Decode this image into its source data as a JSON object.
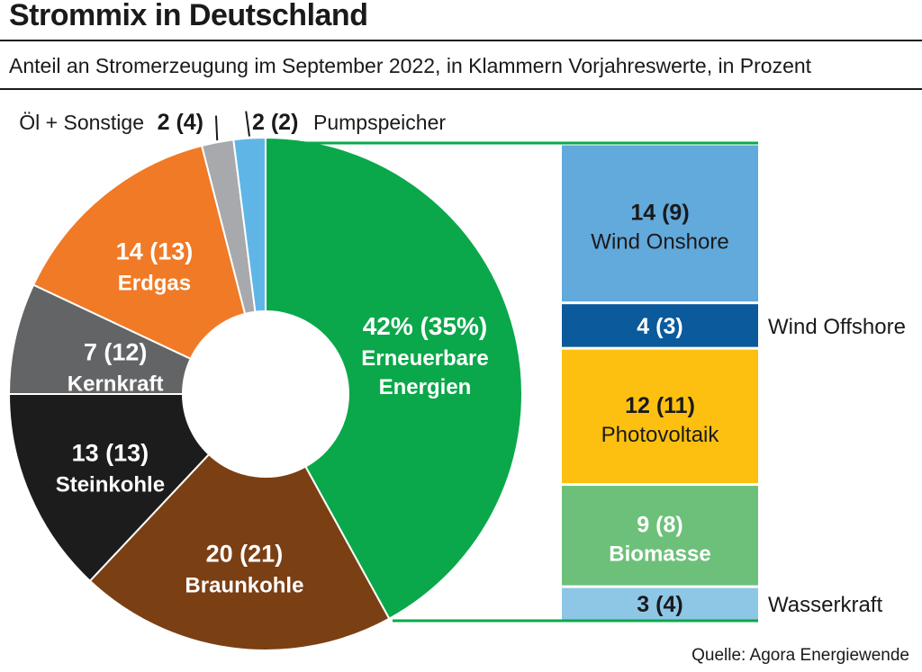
{
  "header": {
    "title": "Strommix in Deutschland",
    "subtitle": "Anteil an Stromerzeugung im September 2022, in Klammern Vorjahreswerte, in Prozent",
    "source": "Quelle: Agora Energiewende"
  },
  "chart_data": {
    "type": "pie",
    "title": "Strommix in Deutschland",
    "subtitle": "Anteil an Stromerzeugung im September 2022, in Klammern Vorjahreswerte, in Prozent",
    "slices": [
      {
        "name": "Erneuerbare Energien",
        "value": 42,
        "prev": 35,
        "value_label": "42% (35%)",
        "label_lines": [
          "Erneuerbare",
          "Energien"
        ],
        "color": "#0aa84a"
      },
      {
        "name": "Braunkohle",
        "value": 20,
        "prev": 21,
        "value_label": "20 (21)",
        "label_lines": [
          "Braunkohle"
        ],
        "color": "#7b3f14"
      },
      {
        "name": "Steinkohle",
        "value": 13,
        "prev": 13,
        "value_label": "13 (13)",
        "label_lines": [
          "Steinkohle"
        ],
        "color": "#1c1c1c"
      },
      {
        "name": "Kernkraft",
        "value": 7,
        "prev": 12,
        "value_label": "7 (12)",
        "label_lines": [
          "Kernkraft"
        ],
        "color": "#636466"
      },
      {
        "name": "Erdgas",
        "value": 14,
        "prev": 13,
        "value_label": "14 (13)",
        "label_lines": [
          "Erdgas"
        ],
        "color": "#f07a26"
      },
      {
        "name": "Öl + Sonstige",
        "value": 2,
        "prev": 4,
        "value_label": "2 (4)",
        "label_lines": [
          "Öl + Sonstige"
        ],
        "color": "#a7a9ac"
      },
      {
        "name": "Pumpspeicher",
        "value": 2,
        "prev": 2,
        "value_label": "2 (2)",
        "label_lines": [
          "Pumpspeicher"
        ],
        "color": "#5fb6e6"
      }
    ],
    "breakdown": {
      "of": "Erneuerbare Energien",
      "type": "stacked-bar",
      "items": [
        {
          "name": "Wind Onshore",
          "value": 14,
          "prev": 9,
          "value_label": "14 (9)",
          "color": "#62a9dc",
          "label_position": "inside"
        },
        {
          "name": "Wind Offshore",
          "value": 4,
          "prev": 3,
          "value_label": "4 (3)",
          "color": "#0a5a9c",
          "label_position": "outside"
        },
        {
          "name": "Photovoltaik",
          "value": 12,
          "prev": 11,
          "value_label": "12 (11)",
          "color": "#fdc010",
          "label_position": "inside"
        },
        {
          "name": "Biomasse",
          "value": 9,
          "prev": 8,
          "value_label": "9 (8)",
          "color": "#6dc07a",
          "label_position": "inside"
        },
        {
          "name": "Wasserkraft",
          "value": 3,
          "prev": 4,
          "value_label": "3 (4)",
          "color": "#8ec6e6",
          "label_position": "outside"
        }
      ]
    },
    "legend": "none",
    "grid": false
  }
}
